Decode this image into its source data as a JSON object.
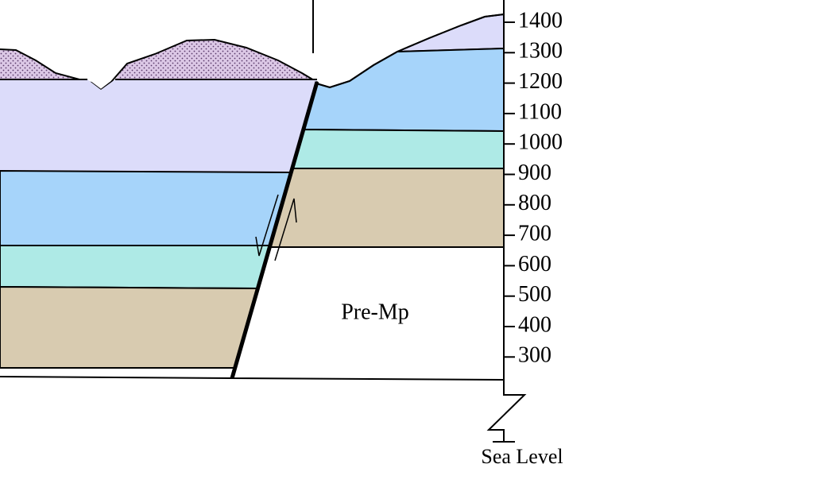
{
  "axis": {
    "labels": [
      1400,
      1300,
      1200,
      1100,
      1000,
      900,
      800,
      700,
      600,
      500,
      400,
      300
    ],
    "datum": "Sea Level"
  },
  "units": {
    "basement": "Pre-Mp"
  }
}
